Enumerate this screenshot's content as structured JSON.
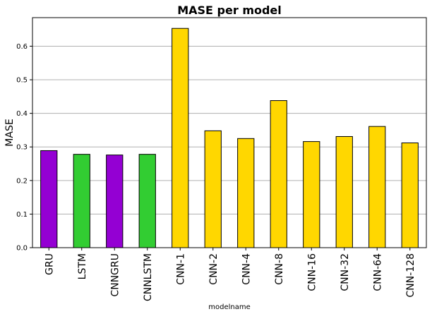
{
  "chart_data": {
    "type": "bar",
    "title": "MASE per model",
    "xlabel": "modelname",
    "ylabel": "MASE",
    "categories": [
      "GRU",
      "LSTM",
      "CNNGRU",
      "CNNLSTM",
      "CNN-1",
      "CNN-2",
      "CNN-4",
      "CNN-8",
      "CNN-16",
      "CNN-32",
      "CNN-64",
      "CNN-128"
    ],
    "values": [
      0.289,
      0.278,
      0.276,
      0.278,
      0.653,
      0.348,
      0.325,
      0.438,
      0.316,
      0.331,
      0.361,
      0.312
    ],
    "bar_colors": [
      "#9400D3",
      "#32CD32",
      "#9400D3",
      "#32CD32",
      "#FFD700",
      "#FFD700",
      "#FFD700",
      "#FFD700",
      "#FFD700",
      "#FFD700",
      "#FFD700",
      "#FFD700"
    ],
    "ylim": [
      0,
      0.685
    ],
    "yticks": [
      "0.0",
      "0.1",
      "0.2",
      "0.3",
      "0.4",
      "0.5",
      "0.6"
    ],
    "grid": "horizontal",
    "grid_color": "#b0b0b0",
    "bar_edge_color": "#000000"
  }
}
